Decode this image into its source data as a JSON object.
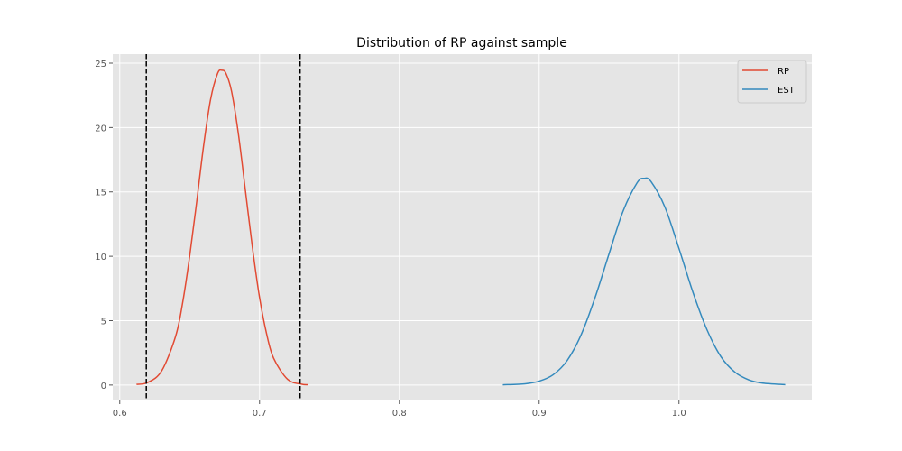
{
  "chart_data": {
    "type": "line",
    "title": "Distribution of RP against sample",
    "xlabel": "",
    "ylabel": "",
    "xlim": [
      0.595,
      1.095
    ],
    "ylim": [
      -1.2,
      25.7
    ],
    "xticks": [
      0.6,
      0.7,
      0.8,
      0.9,
      1.0
    ],
    "xtick_labels": [
      "0.6",
      "0.7",
      "0.8",
      "0.9",
      "1.0"
    ],
    "yticks": [
      0,
      5,
      10,
      15,
      20,
      25
    ],
    "ytick_labels": [
      "0",
      "5",
      "10",
      "15",
      "20",
      "25"
    ],
    "grid": true,
    "legend_position": "top-right",
    "series": [
      {
        "name": "RP",
        "color": "#E24A33",
        "x": [
          0.612,
          0.62,
          0.63,
          0.64,
          0.645,
          0.65,
          0.655,
          0.66,
          0.665,
          0.67,
          0.673,
          0.676,
          0.68,
          0.685,
          0.69,
          0.695,
          0.7,
          0.705,
          0.71,
          0.72,
          0.73,
          0.735
        ],
        "y": [
          0.05,
          0.2,
          1.1,
          3.8,
          6.4,
          10.0,
          14.2,
          18.6,
          22.2,
          24.2,
          24.45,
          24.2,
          22.8,
          19.4,
          15.0,
          10.6,
          6.8,
          4.0,
          2.1,
          0.45,
          0.07,
          0.03
        ]
      },
      {
        "name": "EST",
        "color": "#348ABD",
        "x": [
          0.874,
          0.89,
          0.9,
          0.91,
          0.92,
          0.93,
          0.94,
          0.95,
          0.96,
          0.97,
          0.975,
          0.98,
          0.99,
          1.0,
          1.01,
          1.02,
          1.03,
          1.04,
          1.05,
          1.06,
          1.076
        ],
        "y": [
          0.02,
          0.1,
          0.3,
          0.8,
          1.9,
          3.9,
          6.8,
          10.2,
          13.5,
          15.7,
          16.05,
          15.8,
          13.8,
          10.6,
          7.2,
          4.3,
          2.2,
          1.0,
          0.4,
          0.15,
          0.03
        ]
      }
    ],
    "vlines": [
      {
        "x": 0.619,
        "style": "dashed",
        "color": "#000000"
      },
      {
        "x": 0.729,
        "style": "dashed",
        "color": "#000000"
      }
    ]
  }
}
